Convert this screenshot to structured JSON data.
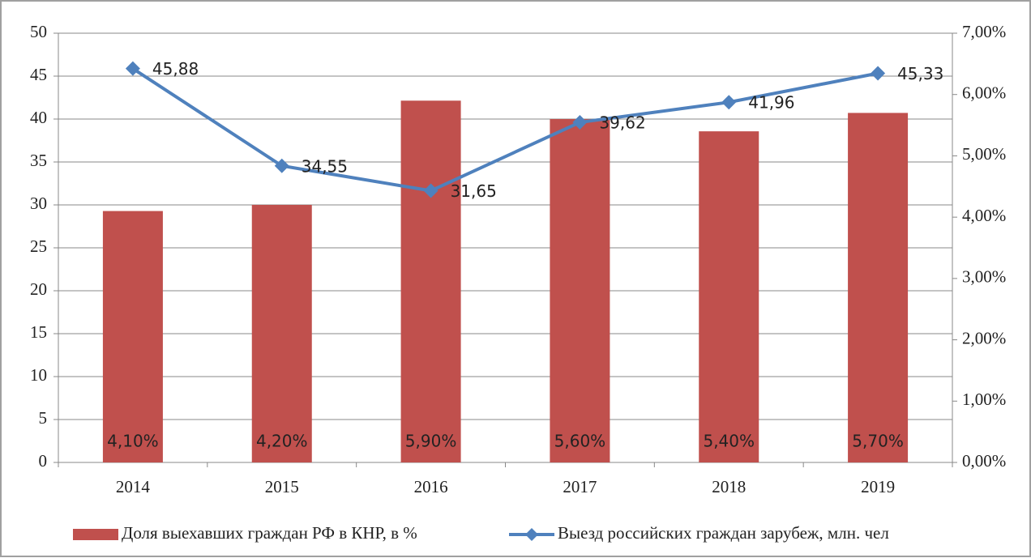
{
  "chart_data": {
    "type": "bar",
    "categories": [
      "2014",
      "2015",
      "2016",
      "2017",
      "2018",
      "2019"
    ],
    "series": [
      {
        "name": "Доля выехавших граждан РФ в КНР, в %",
        "type": "bar",
        "axis": "y2",
        "color": "#c0504d",
        "values": [
          4.1,
          4.2,
          5.9,
          5.6,
          5.4,
          5.7
        ],
        "value_labels": [
          "4,10%",
          "4,20%",
          "5,90%",
          "5,60%",
          "5,40%",
          "5,70%"
        ]
      },
      {
        "name": "Выезд российских граждан зарубеж, млн. чел",
        "type": "line",
        "color": "#4f81bd",
        "values": [
          45.88,
          34.55,
          31.65,
          39.62,
          41.96,
          45.33
        ],
        "value_labels": [
          "45,88",
          "34,55",
          "31,65",
          "39,62",
          "41,96",
          "45,33"
        ]
      }
    ],
    "ylim": [
      0,
      50
    ],
    "yticks": [
      0,
      5,
      10,
      15,
      20,
      25,
      30,
      35,
      40,
      45,
      50
    ],
    "y2lim": [
      0,
      7
    ],
    "y2ticks": [
      {
        "value": 0,
        "label": "0,00%"
      },
      {
        "value": 1,
        "label": "1,00%"
      },
      {
        "value": 2,
        "label": "2,00%"
      },
      {
        "value": 3,
        "label": "3,00%"
      },
      {
        "value": 4,
        "label": "4,00%"
      },
      {
        "value": 5,
        "label": "5,00%"
      },
      {
        "value": 6,
        "label": "6,00%"
      },
      {
        "value": 7,
        "label": "7,00%"
      }
    ],
    "grid": true,
    "legend": "bottom"
  }
}
